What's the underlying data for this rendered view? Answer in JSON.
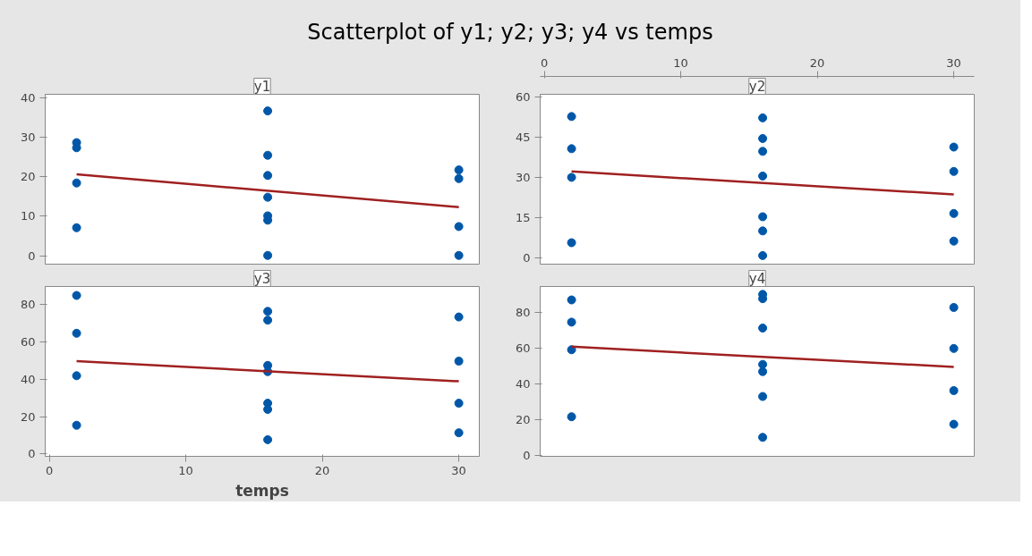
{
  "chart_data": [
    {
      "type": "scatter",
      "title": "Scatterplot of y1; y2; y3; y4 vs temps",
      "xlim": [
        -0.3,
        31.5
      ],
      "ylim": [
        -2.1,
        40.8
      ],
      "yticks": [
        0,
        10,
        20,
        30,
        40
      ],
      "tick_labels": "y",
      "grid": false,
      "series": [
        {
          "name": "y1",
          "marker": "circle",
          "color": "#0057a8",
          "x": [
            2,
            2,
            2,
            2,
            16,
            16,
            16,
            16,
            16,
            16,
            16,
            30,
            30,
            30,
            30
          ],
          "values": [
            28.6,
            27.3,
            18.4,
            7.1,
            36.6,
            25.4,
            20.3,
            14.8,
            10.1,
            9.0,
            0.1,
            21.7,
            19.5,
            7.4,
            0.1
          ]
        },
        {
          "type": "line",
          "color": "#a02020",
          "x": [
            2,
            30
          ],
          "values": [
            20.6,
            12.3
          ]
        }
      ]
    },
    {
      "type": "scatter",
      "xlim": [
        -0.3,
        31.5
      ],
      "x2lim": [
        -0.3,
        31.5
      ],
      "x2ticks": [
        0,
        10,
        20,
        30
      ],
      "ylim": [
        -2.5,
        60.9
      ],
      "yticks": [
        0,
        15,
        30,
        45,
        60
      ],
      "tick_labels": "y",
      "grid": false,
      "series": [
        {
          "name": "y2",
          "marker": "circle",
          "color": "#0057a8",
          "x": [
            2,
            2,
            2,
            2,
            16,
            16,
            16,
            16,
            16,
            16,
            16,
            30,
            30,
            30,
            30
          ],
          "values": [
            52.6,
            40.6,
            29.9,
            5.5,
            52.1,
            44.4,
            39.6,
            30.4,
            15.2,
            9.9,
            0.7,
            41.2,
            32.1,
            16.4,
            6.1
          ]
        },
        {
          "type": "line",
          "color": "#a02020",
          "x": [
            2,
            30
          ],
          "values": [
            32.1,
            23.5
          ]
        }
      ]
    },
    {
      "type": "scatter",
      "xlabel": "temps",
      "xlim": [
        -0.3,
        31.5
      ],
      "xticks": [
        0,
        10,
        20,
        30
      ],
      "ylim": [
        -1.2,
        89.6
      ],
      "yticks": [
        0,
        20,
        40,
        60,
        80
      ],
      "grid": false,
      "series": [
        {
          "name": "y3",
          "marker": "circle",
          "color": "#0057a8",
          "x": [
            2,
            2,
            2,
            2,
            16,
            16,
            16,
            16,
            16,
            16,
            16,
            30,
            30,
            30,
            30
          ],
          "values": [
            84.8,
            64.6,
            41.9,
            15.4,
            76.3,
            71.6,
            47.4,
            44.1,
            27.2,
            23.9,
            7.7,
            73.3,
            49.7,
            27.2,
            11.4
          ]
        },
        {
          "type": "line",
          "color": "#a02020",
          "x": [
            2,
            30
          ],
          "values": [
            49.7,
            38.9
          ]
        }
      ]
    },
    {
      "type": "scatter",
      "xlim": [
        -0.3,
        31.5
      ],
      "ylim": [
        -0.5,
        94.3
      ],
      "yticks": [
        0,
        20,
        40,
        60,
        80
      ],
      "tick_labels": "y",
      "grid": false,
      "series": [
        {
          "name": "y4",
          "marker": "circle",
          "color": "#0057a8",
          "x": [
            2,
            2,
            2,
            2,
            16,
            16,
            16,
            16,
            16,
            16,
            16,
            30,
            30,
            30,
            30
          ],
          "values": [
            86.8,
            74.4,
            59.0,
            21.6,
            89.9,
            87.5,
            71.1,
            50.8,
            46.8,
            32.9,
            10.1,
            82.6,
            59.7,
            36.2,
            17.4
          ]
        },
        {
          "type": "line",
          "color": "#a02020",
          "x": [
            2,
            30
          ],
          "values": [
            60.7,
            49.4
          ]
        }
      ]
    }
  ]
}
